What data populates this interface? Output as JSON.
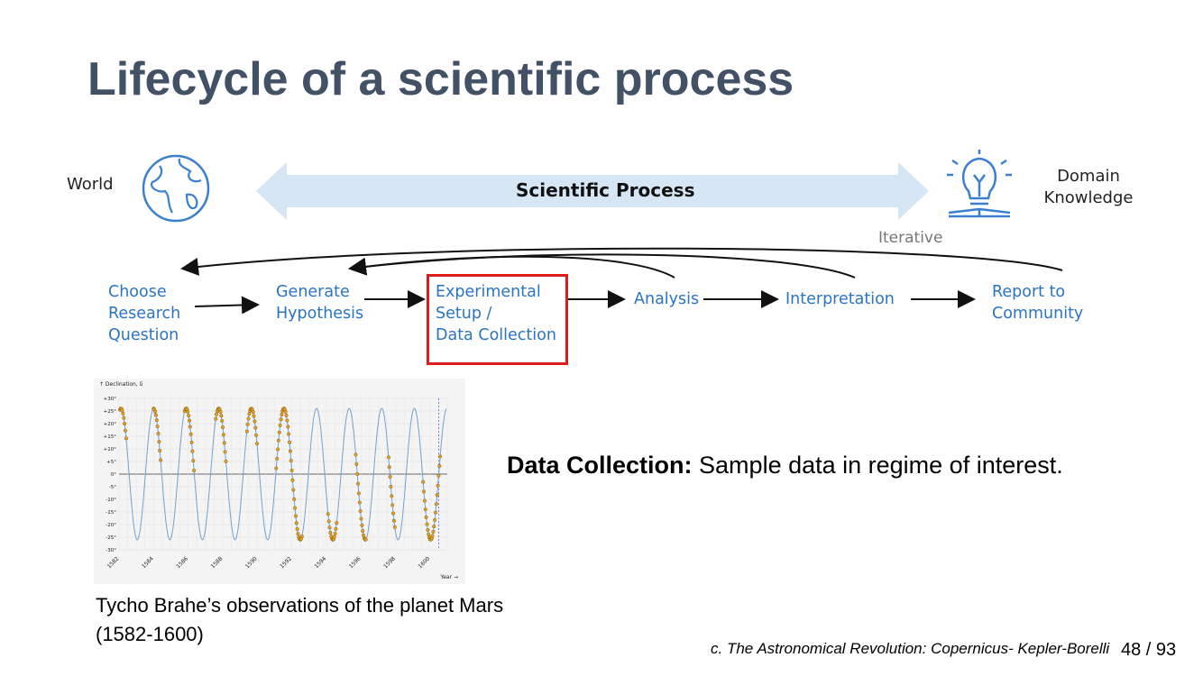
{
  "slide": {
    "title": "Lifecycle of a scientific process",
    "page_number": "48 / 93"
  },
  "diagram": {
    "world_label": "World",
    "process_label": "Scientific Process",
    "domain_label": [
      "Domain",
      "Knowledge"
    ],
    "iterative_label": "Iterative",
    "steps": [
      {
        "lines": [
          "Choose",
          "Research",
          "Question"
        ]
      },
      {
        "lines": [
          "Generate",
          "Hypothesis"
        ]
      },
      {
        "lines": [
          "Experimental",
          "Setup /",
          "Data Collection"
        ],
        "highlighted": true
      },
      {
        "lines": [
          "Analysis"
        ]
      },
      {
        "lines": [
          "Interpretation"
        ]
      },
      {
        "lines": [
          "Report to",
          "Community"
        ]
      }
    ],
    "colors": {
      "step_text": "#2a74c4",
      "highlight_box": "#e01b1b",
      "arrow_band": "#d6e6f5",
      "icon": "#3a7fd0"
    }
  },
  "chart_data": {
    "type": "line",
    "ylabel": "↑ Declination, δ",
    "xlabel": "Year →",
    "y_ticks": [
      "+30°",
      "+25°",
      "+20°",
      "+15°",
      "+10°",
      "+5°",
      "0°",
      "-5°",
      "-10°",
      "-15°",
      "-20°",
      "-25°",
      "-30°"
    ],
    "x_ticks": [
      "1582",
      "1584",
      "1586",
      "1588",
      "1590",
      "1592",
      "1594",
      "1596",
      "1598",
      "1600"
    ],
    "ylim": [
      -30,
      30
    ],
    "xlim": [
      1582,
      1601
    ],
    "series": [
      {
        "color": "#6fa3d0",
        "type": "line",
        "curve": "declination-cycle"
      },
      {
        "color": "#e8a020",
        "type": "scatter"
      }
    ]
  },
  "caption": {
    "line1": "Tycho Brahe’s observations of the planet Mars",
    "line2": "(1582-1600)"
  },
  "body": {
    "bold": "Data Collection:",
    "text": " Sample data in regime of interest."
  },
  "citation": "c.  The Astronomical Revolution: Copernicus- Kepler-Borelli"
}
